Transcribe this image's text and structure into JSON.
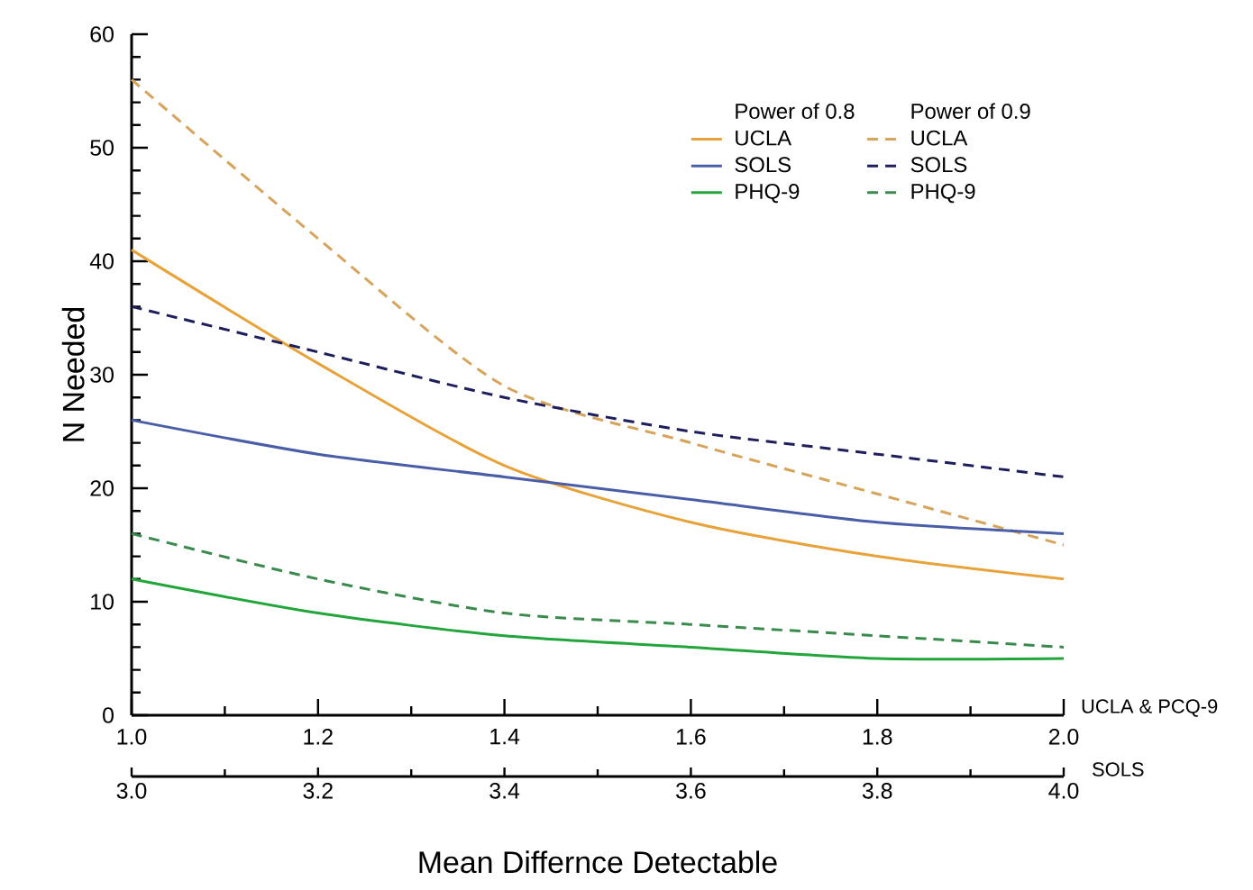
{
  "chart_data": {
    "type": "line",
    "xlabel": "Mean Differnce Detectable",
    "ylabel": "N Needed",
    "x2label": "SOLS",
    "annotations": [
      "Power of 0.8",
      "Power of 0.9",
      "UCLA & PCQ-9"
    ],
    "xlim": [
      1.0,
      2.0
    ],
    "xticks": [
      {
        "value": 1.0,
        "label": "1.0"
      },
      {
        "value": 1.1,
        "label": null
      },
      {
        "value": 1.2,
        "label": "1.2"
      },
      {
        "value": 1.3,
        "label": null
      },
      {
        "value": 1.4,
        "label": "1.4"
      },
      {
        "value": 1.5,
        "label": null
      },
      {
        "value": 1.6,
        "label": "1.6"
      },
      {
        "value": 1.7,
        "label": null
      },
      {
        "value": 1.8,
        "label": "1.8"
      },
      {
        "value": 1.9,
        "label": null
      },
      {
        "value": 2.0,
        "label": "2.0"
      }
    ],
    "x2lim": [
      3.0,
      4.0
    ],
    "x2ticks": [
      {
        "value": 3.0,
        "label": "3.0"
      },
      {
        "value": 3.1,
        "label": null
      },
      {
        "value": 3.2,
        "label": "3.2"
      },
      {
        "value": 3.3,
        "label": null
      },
      {
        "value": 3.4,
        "label": "3.4"
      },
      {
        "value": 3.5,
        "label": null
      },
      {
        "value": 3.6,
        "label": "3.6"
      },
      {
        "value": 3.7,
        "label": null
      },
      {
        "value": 3.8,
        "label": "3.8"
      },
      {
        "value": 3.9,
        "label": null
      },
      {
        "value": 4.0,
        "label": "4.0"
      }
    ],
    "ylim": [
      0,
      60
    ],
    "yticks": [
      0,
      {
        "value": 2,
        "label": null
      },
      {
        "value": 4,
        "label": null
      },
      {
        "value": 6,
        "label": null
      },
      {
        "value": 8,
        "label": null
      },
      10,
      {
        "value": 12,
        "label": null
      },
      {
        "value": 14,
        "label": null
      },
      {
        "value": 16,
        "label": null
      },
      {
        "value": 18,
        "label": null
      },
      20,
      {
        "value": 22,
        "label": null
      },
      {
        "value": 24,
        "label": null
      },
      {
        "value": 26,
        "label": null
      },
      {
        "value": 28,
        "label": null
      },
      30,
      {
        "value": 32,
        "label": null
      },
      {
        "value": 34,
        "label": null
      },
      {
        "value": 36,
        "label": null
      },
      {
        "value": 38,
        "label": null
      },
      40,
      {
        "value": 42,
        "label": null
      },
      {
        "value": 44,
        "label": null
      },
      {
        "value": 46,
        "label": null
      },
      {
        "value": 48,
        "label": null
      },
      50,
      {
        "value": 52,
        "label": null
      },
      {
        "value": 54,
        "label": null
      },
      {
        "value": 56,
        "label": null
      },
      {
        "value": 58,
        "label": null
      },
      60
    ],
    "legend": "top right",
    "series": [
      {
        "name": "UCLA",
        "color": "#e8a23a",
        "line_style": "solid",
        "x": [
          1.0,
          1.2,
          1.4,
          1.6,
          1.8,
          2.0
        ],
        "values": [
          41,
          31,
          22,
          17,
          14,
          12
        ]
      },
      {
        "name": "UCLA",
        "color": "#d6a45c",
        "line_style": "dashed",
        "x": [
          1.0,
          1.2,
          1.4,
          1.6,
          1.8,
          2.0
        ],
        "values": [
          56,
          42,
          29,
          24,
          19.5,
          15
        ]
      },
      {
        "name": "SOLS",
        "color": "#4a5ea8",
        "line_style": "solid",
        "axis": "x2",
        "x": [
          3.0,
          3.2,
          3.4,
          3.6,
          3.8,
          4.0
        ],
        "values": [
          26,
          23,
          21,
          19,
          17,
          16
        ]
      },
      {
        "name": "SOLS",
        "color": "#1e1e5c",
        "line_style": "dashed",
        "axis": "x2",
        "x": [
          3.0,
          3.2,
          3.4,
          3.6,
          3.8,
          4.0
        ],
        "values": [
          36,
          32,
          28,
          25,
          23,
          21
        ]
      },
      {
        "name": "PHQ-9",
        "color": "#22a53a",
        "line_style": "solid",
        "x": [
          1.0,
          1.2,
          1.4,
          1.6,
          1.8,
          2.0
        ],
        "values": [
          12,
          9,
          7,
          6,
          5,
          5
        ]
      },
      {
        "name": "PHQ-9",
        "color": "#3a8a4e",
        "line_style": "dashed",
        "x": [
          1.0,
          1.2,
          1.4,
          1.6,
          1.8,
          2.0
        ],
        "values": [
          16,
          12,
          9,
          8,
          7,
          6
        ]
      }
    ]
  }
}
